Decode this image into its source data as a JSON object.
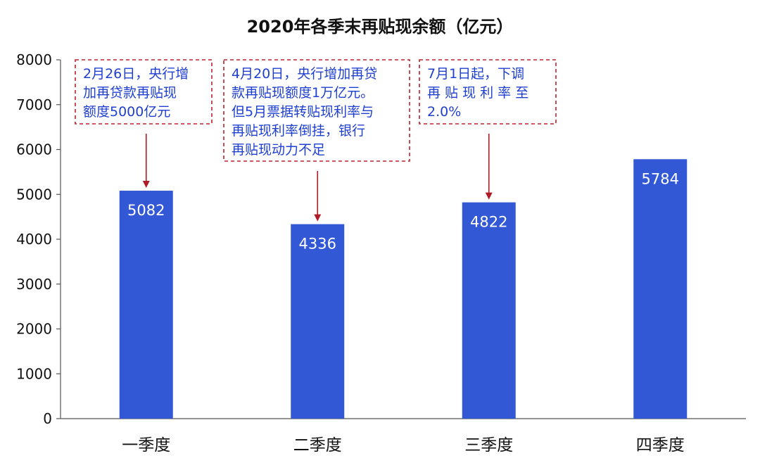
{
  "chart_data": {
    "type": "bar",
    "title": "2020年各季末再贴现余额（亿元）",
    "categories": [
      "一季度",
      "二季度",
      "三季度",
      "四季度"
    ],
    "values": [
      5082,
      4336,
      4822,
      5784
    ],
    "value_labels": [
      "5082",
      "4336",
      "4822",
      "5784"
    ],
    "y_ticks": [
      "0",
      "1000",
      "2000",
      "3000",
      "4000",
      "5000",
      "6000",
      "7000",
      "8000"
    ],
    "ylim": [
      0,
      8000
    ],
    "xlabel": "",
    "ylabel": "",
    "grid": false,
    "bar_color": "#3358d6",
    "annotations": [
      {
        "category": "一季度",
        "lines": [
          "2月26日，央行增",
          "加再贷款再贴现",
          "额度5000亿元"
        ]
      },
      {
        "category": "二季度",
        "lines": [
          "4月20日，央行增加再贷",
          "款再贴现额度1万亿元。",
          "但5月票据转贴现利率与",
          "再贴现利率倒挂，银行",
          "再贴现动力不足"
        ]
      },
      {
        "category": "三季度",
        "lines": [
          "7月1日起，下调",
          "再 贴 现 利 率 至",
          "2.0%"
        ]
      }
    ]
  }
}
